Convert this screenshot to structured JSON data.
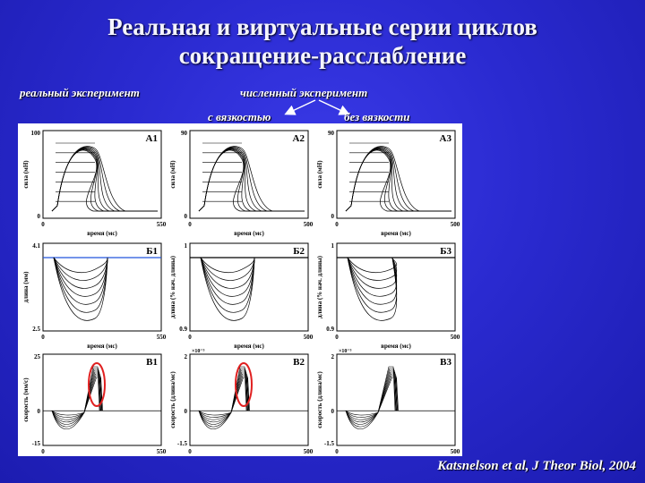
{
  "slide": {
    "title_line1": "Реальная и виртуальные серии циклов",
    "title_line2": "сокращение-расслабление",
    "label_real": "реальный эксперимент",
    "label_numeric": "численный эксперимент",
    "label_with_visc": "с вязкостью",
    "label_without_visc": "без вязкости",
    "citation": "Katsnelson et al, J Theor Biol, 2004"
  },
  "panels": {
    "A1": {
      "name": "A1",
      "ylabel": "сила (мН)",
      "xlabel": "время (мс)",
      "ytop": "100",
      "ybot": "0",
      "xleft": "0",
      "xright": "550"
    },
    "A2": {
      "name": "A2",
      "ylabel": "сила (мН)",
      "xlabel": "время (мс)",
      "ytop": "90",
      "ybot": "0",
      "xleft": "0",
      "xright": "500"
    },
    "A3": {
      "name": "A3",
      "ylabel": "сила (мН)",
      "xlabel": "время (мс)",
      "ytop": "90",
      "ybot": "0",
      "xleft": "0",
      "xright": "500"
    },
    "B1": {
      "name": "Б1",
      "ylabel": "длина (мм)",
      "xlabel": "время (мс)",
      "ytop": "4.1",
      "ybot": "2.5",
      "xleft": "0",
      "xright": "550"
    },
    "B2": {
      "name": "Б2",
      "ylabel": "длина (% нач. длины)",
      "xlabel": "время (мс)",
      "ytop": "1",
      "ybot": "0.9",
      "xleft": "0",
      "xright": "500"
    },
    "B3": {
      "name": "Б3",
      "ylabel": "длина (% нач. длины)",
      "xlabel": "время (мс)",
      "ytop": "1",
      "ybot": "0.9",
      "xleft": "0",
      "xright": "500"
    },
    "C1": {
      "name": "B1",
      "ylabel": "скорость (мм/с)",
      "xlabel": "время (мс)",
      "ytop": "25",
      "ybot": "-15",
      "xleft": "0",
      "xright": "550",
      "mid": "0",
      "exp": ""
    },
    "C2": {
      "name": "B2",
      "ylabel": "скорость (длина/мс)",
      "xlabel": "время (мс)",
      "ytop": "2",
      "ybot": "-1.5",
      "xleft": "0",
      "xright": "500",
      "mid": "0",
      "exp": "×10⁻³"
    },
    "C3": {
      "name": "B3",
      "ylabel": "скорость (длина/мс)",
      "xlabel": "время (мс)",
      "ytop": "2",
      "ybot": "-1.5",
      "xleft": "0",
      "xright": "500",
      "mid": "0",
      "exp": "×10⁻³"
    }
  }
}
